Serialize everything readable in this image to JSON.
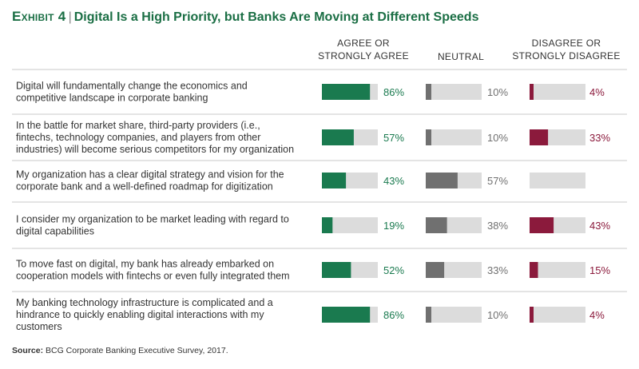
{
  "title": {
    "exhibit_label": "Exhibit 4",
    "text": "Digital Is a High Priority, but Banks Are Moving at Different Speeds"
  },
  "source": {
    "label": "Source:",
    "text": "BCG Corporate Banking Executive Survey, 2017."
  },
  "colors": {
    "agree": "#1a7a4f",
    "neutral": "#707070",
    "disagree": "#8b1a3c",
    "track": "#dcdcdc",
    "agree_text": "#1a7a4f",
    "neutral_text": "#707070",
    "disagree_text": "#8b1a3c",
    "divider": "#c8c8c8"
  },
  "chart_data": {
    "type": "bar",
    "series": [
      {
        "name": "AGREE OR\nSTRONGLY AGREE",
        "values": [
          86,
          57,
          43,
          19,
          52,
          86
        ]
      },
      {
        "name": "NEUTRAL",
        "values": [
          10,
          10,
          57,
          38,
          33,
          10
        ]
      },
      {
        "name": "DISAGREE OR\nSTRONGLY DISAGREE",
        "values": [
          4,
          33,
          0,
          43,
          15,
          4
        ]
      }
    ],
    "value_labels": [
      [
        "86%",
        "10%",
        "4%"
      ],
      [
        "57%",
        "10%",
        "33%"
      ],
      [
        "43%",
        "57%",
        ""
      ],
      [
        "19%",
        "38%",
        "43%"
      ],
      [
        "52%",
        "33%",
        "15%"
      ],
      [
        "86%",
        "10%",
        "4%"
      ]
    ],
    "categories": [
      "Digital will fundamentally change the economics and\ncompetitive landscape in corporate banking",
      "In the battle for market share, third-party providers (i.e.,\nfintechs, technology companies, and players from other\nindustries) will become serious competitors for my organization",
      "My organization has a clear digital strategy and vision for the\ncorporate bank and a well-defined roadmap for digitization",
      "I consider my organization to be market leading with regard to\ndigital capabilities",
      "To move fast on digital, my bank has already embarked on\ncooperation models with fintechs or even fully integrated them",
      "My banking technology infrastructure is complicated and a\nhindrance to quickly enabling digital interactions with my\ncustomers"
    ],
    "ylim": [
      0,
      100
    ]
  }
}
